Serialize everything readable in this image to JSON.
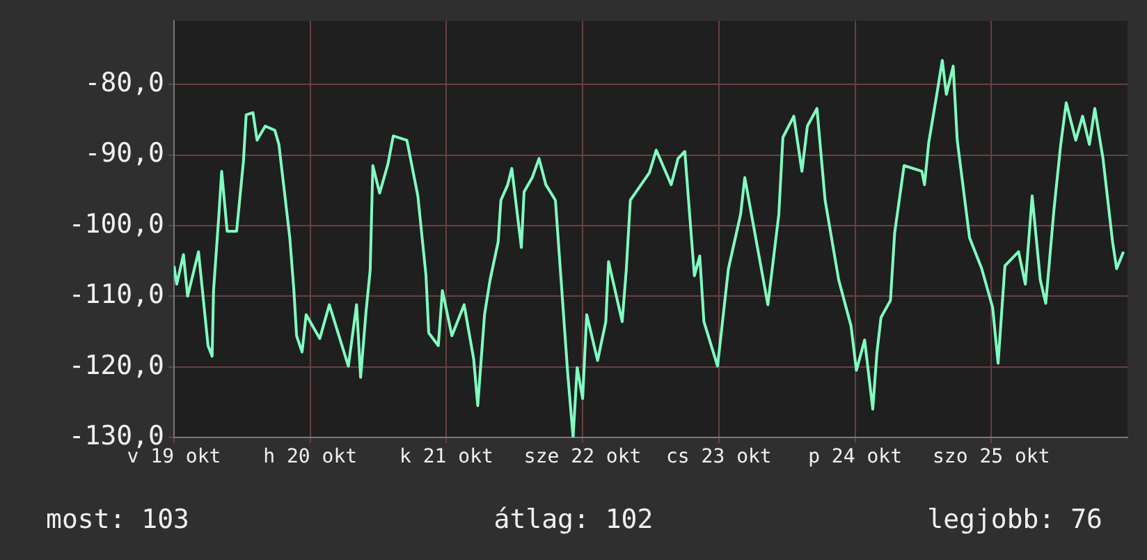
{
  "chart_data": {
    "type": "line",
    "xlim": [
      "--10-19",
      "--10-26"
    ],
    "xticks": [
      {
        "value": "--10-19",
        "label": "v 19 okt"
      },
      {
        "value": "--10-20",
        "label": "h 20 okt"
      },
      {
        "value": "--10-21",
        "label": "k 21 okt"
      },
      {
        "value": "--10-22",
        "label": "sze 22 okt"
      },
      {
        "value": "--10-23",
        "label": "cs 23 okt"
      },
      {
        "value": "--10-24",
        "label": "p 24 okt"
      },
      {
        "value": "--10-25",
        "label": "szo 25 okt"
      }
    ],
    "ylim": [
      -130,
      -71
    ],
    "yticks": [
      {
        "value": -130,
        "label": "-130,0"
      },
      {
        "value": -120,
        "label": "-120,0"
      },
      {
        "value": -110,
        "label": "-110,0"
      },
      {
        "value": -100,
        "label": "-100,0"
      },
      {
        "value": -90,
        "label": "-90,0"
      },
      {
        "value": -80,
        "label": "-80,0"
      }
    ],
    "grid": true,
    "legend": false,
    "marker": "none",
    "line_style": "solid",
    "annotations": [
      "most: 103",
      "átlag: 102",
      "legjobb: 76"
    ],
    "series": [
      {
        "color": "#80ffc0",
        "x": [
          "--10-19T00:00",
          "--10-19T00:29",
          "--10-19T01:40",
          "--10-19T02:24",
          "--10-19T04:19",
          "--10-19T06:00",
          "--10-19T06:43",
          "--10-19T06:58",
          "--10-19T07:55",
          "--10-19T08:24",
          "--10-19T09:22",
          "--10-19T11:02",
          "--10-19T11:31",
          "--10-19T12:14",
          "--10-19T12:43",
          "--10-19T13:55",
          "--10-19T14:38",
          "--10-19T16:05",
          "--10-19T17:46",
          "--10-19T18:29",
          "--10-19T20:24",
          "--10-19T21:07",
          "--10-19T21:36",
          "--10-19T22:34",
          "--10-19T23:17",
          "--10-20T01:41",
          "--10-20T03:22",
          "--10-20T06:43",
          "--10-20T08:10",
          "--10-20T08:53",
          "--10-20T09:50",
          "--10-20T10:34",
          "--10-20T11:02",
          "--10-20T12:14",
          "--10-20T13:41",
          "--10-20T14:38",
          "--10-20T17:02",
          "--10-20T18:58",
          "--10-20T20:24",
          "--10-20T20:53",
          "--10-20T22:34",
          "--10-20T23:17",
          "--10-21T00:58",
          "--10-21T03:07",
          "--10-21T04:48",
          "--10-21T05:31",
          "--10-21T06:43",
          "--10-21T07:41",
          "--10-21T09:07",
          "--10-21T09:36",
          "--10-21T10:48",
          "--10-21T11:31",
          "--10-21T13:12",
          "--10-21T13:41",
          "--10-21T15:07",
          "--10-21T16:19",
          "--10-21T17:31",
          "--10-21T19:12",
          "--10-21T20:38",
          "--10-21T21:22",
          "--10-21T22:19",
          "--10-21T23:02",
          "--10-22T00:00",
          "--10-22T00:43",
          "--10-22T02:38",
          "--10-22T04:05",
          "--10-22T04:34",
          "--10-22T06:58",
          "--10-22T07:41",
          "--10-22T08:24",
          "--10-22T11:46",
          "--10-22T12:58",
          "--10-22T15:36",
          "--10-22T16:48",
          "--10-22T18:00",
          "--10-22T19:41",
          "--10-22T20:38",
          "--10-22T21:22",
          "--10-22T23:46",
          "--10-23T01:41",
          "--10-23T03:50",
          "--10-23T04:34",
          "--10-23T06:29",
          "--10-23T08:38",
          "--10-23T10:34",
          "--10-23T11:17",
          "--10-23T13:12",
          "--10-23T14:38",
          "--10-23T15:36",
          "--10-23T17:17",
          "--10-23T18:43",
          "--10-23T21:07",
          "--10-23T23:17",
          "--10-24T00:14",
          "--10-24T01:41",
          "--10-24T03:07",
          "--10-24T03:50",
          "--10-24T04:34",
          "--10-24T06:14",
          "--10-24T06:58",
          "--10-24T08:38",
          "--10-24T11:46",
          "--10-24T12:14",
          "--10-24T12:58",
          "--10-24T14:24",
          "--10-24T15:22",
          "--10-24T16:05",
          "--10-24T17:17",
          "--10-24T18:00",
          "--10-24T20:10",
          "--10-24T22:19",
          "--10-25T00:14",
          "--10-25T01:12",
          "--10-25T02:24",
          "--10-25T04:48",
          "--10-25T06:00",
          "--10-25T07:12",
          "--10-25T08:38",
          "--10-25T09:36",
          "--10-25T11:02",
          "--10-25T12:14",
          "--10-25T13:12",
          "--10-25T14:53",
          "--10-25T16:05",
          "--10-25T17:17",
          "--10-25T18:14",
          "--10-25T19:41",
          "--10-25T21:22",
          "--10-25T22:05",
          "--10-25T23:17"
        ],
        "values": [
          -105.7,
          -108.3,
          -104.1,
          -110.0,
          -103.7,
          -117.0,
          -118.5,
          -109.2,
          -98.4,
          -92.3,
          -100.8,
          -100.8,
          -96.8,
          -90.9,
          -84.3,
          -84.0,
          -87.9,
          -85.9,
          -86.5,
          -88.5,
          -101.7,
          -109.1,
          -115.6,
          -117.9,
          -112.6,
          -116.0,
          -111.2,
          -119.9,
          -111.2,
          -121.5,
          -112.2,
          -106.3,
          -91.5,
          -95.4,
          -91.3,
          -87.3,
          -87.9,
          -95.8,
          -107.1,
          -115.2,
          -117.0,
          -109.2,
          -115.6,
          -111.2,
          -118.9,
          -125.5,
          -112.6,
          -107.7,
          -102.3,
          -96.4,
          -94.2,
          -91.9,
          -103.1,
          -95.2,
          -93.2,
          -90.5,
          -94.2,
          -96.4,
          -112.6,
          -120.9,
          -130.0,
          -120.1,
          -124.5,
          -112.6,
          -119.1,
          -113.6,
          -105.1,
          -113.6,
          -106.3,
          -96.4,
          -92.5,
          -89.3,
          -94.2,
          -90.5,
          -89.5,
          -107.1,
          -104.3,
          -113.6,
          -119.9,
          -106.1,
          -98.4,
          -93.2,
          -101.7,
          -111.2,
          -98.4,
          -87.5,
          -84.5,
          -92.3,
          -85.9,
          -83.4,
          -96.4,
          -107.7,
          -114.2,
          -120.5,
          -116.2,
          -126.0,
          -118.1,
          -113.0,
          -110.6,
          -101.1,
          -91.5,
          -92.3,
          -94.2,
          -88.3,
          -81.4,
          -76.6,
          -81.4,
          -77.4,
          -87.9,
          -101.7,
          -106.1,
          -111.6,
          -119.5,
          -105.7,
          -103.7,
          -108.3,
          -95.8,
          -107.7,
          -111.0,
          -97.8,
          -88.5,
          -82.6,
          -87.9,
          -84.5,
          -88.5,
          -83.4,
          -90.5,
          -102.3,
          -106.1,
          -103.7
        ]
      }
    ]
  }
}
